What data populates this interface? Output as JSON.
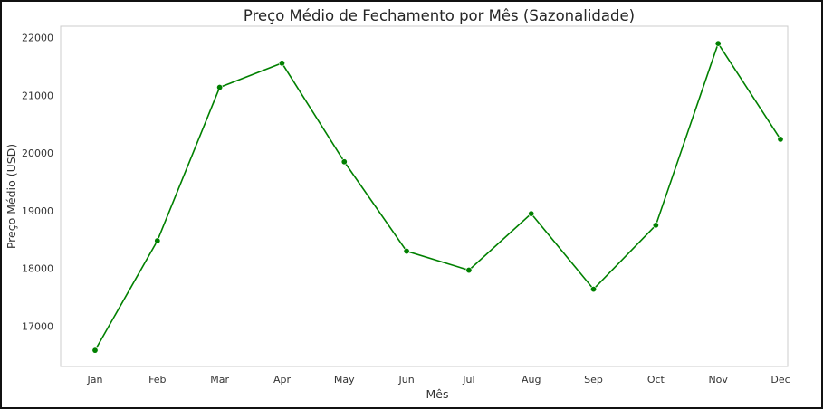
{
  "chart_data": {
    "type": "line",
    "title": "Preço Médio de Fechamento por Mês (Sazonalidade)",
    "xlabel": "Mês",
    "ylabel": "Preço Médio (USD)",
    "categories": [
      "Jan",
      "Feb",
      "Mar",
      "Apr",
      "May",
      "Jun",
      "Jul",
      "Aug",
      "Sep",
      "Oct",
      "Nov",
      "Dec"
    ],
    "series": [
      {
        "values": [
          16580,
          18480,
          21140,
          21560,
          19850,
          18300,
          17970,
          18950,
          17640,
          18750,
          21900,
          20240
        ],
        "color": "#008000"
      }
    ],
    "yticks": [
      17000,
      18000,
      19000,
      20000,
      21000,
      22000
    ],
    "ylim": [
      16300,
      22200
    ],
    "grid": false,
    "legend": "none"
  }
}
